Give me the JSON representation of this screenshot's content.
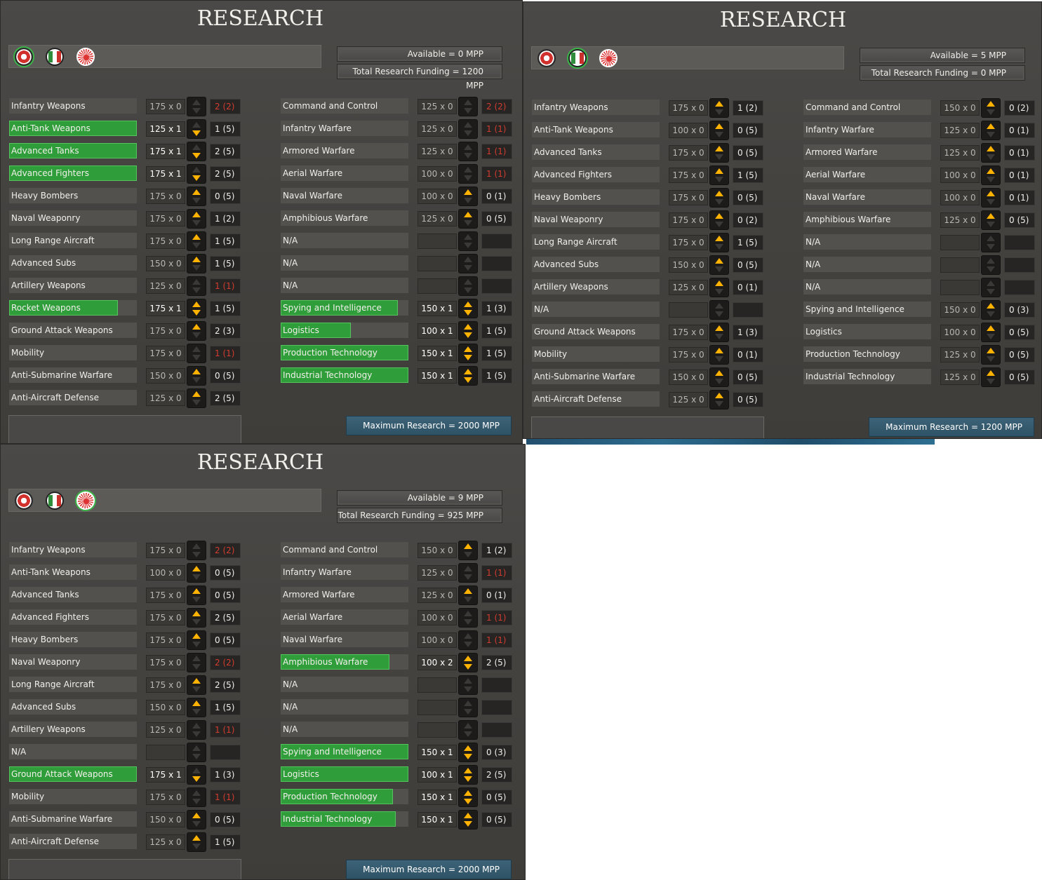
{
  "panels": [
    {
      "title": "RESEARCH",
      "selected_flag": 0,
      "available": "Available = 0 MPP",
      "total_funding": "Total Research Funding = 1200 MPP",
      "maximum": "Maximum Research = 2000 MPP",
      "left_rows": [
        {
          "name": "Infantry Weapons",
          "cost": "175 x 0",
          "level": "2 (2)",
          "red": true,
          "progress": 0,
          "up": false,
          "down": false
        },
        {
          "name": "Anti-Tank Weapons",
          "cost": "125 x 1",
          "level": "1 (5)",
          "red": false,
          "progress": 1.0,
          "up": false,
          "down": true
        },
        {
          "name": "Advanced Tanks",
          "cost": "175 x 1",
          "level": "2 (5)",
          "red": false,
          "progress": 1.0,
          "up": false,
          "down": true
        },
        {
          "name": "Advanced Fighters",
          "cost": "175 x 1",
          "level": "2 (5)",
          "red": false,
          "progress": 1.0,
          "up": false,
          "down": true
        },
        {
          "name": "Heavy Bombers",
          "cost": "175 x 0",
          "level": "0 (5)",
          "red": false,
          "progress": 0,
          "up": true,
          "down": false
        },
        {
          "name": "Naval Weaponry",
          "cost": "175 x 0",
          "level": "1 (2)",
          "red": false,
          "progress": 0,
          "up": true,
          "down": false
        },
        {
          "name": "Long Range Aircraft",
          "cost": "175 x 0",
          "level": "1 (5)",
          "red": false,
          "progress": 0,
          "up": true,
          "down": false
        },
        {
          "name": "Advanced Subs",
          "cost": "150 x 0",
          "level": "1 (5)",
          "red": false,
          "progress": 0,
          "up": true,
          "down": false
        },
        {
          "name": "Artillery Weapons",
          "cost": "125 x 0",
          "level": "1 (1)",
          "red": true,
          "progress": 0,
          "up": false,
          "down": false
        },
        {
          "name": "Rocket Weapons",
          "cost": "175 x 1",
          "level": "1 (5)",
          "red": false,
          "progress": 0.85,
          "up": true,
          "down": true
        },
        {
          "name": "Ground Attack Weapons",
          "cost": "175 x 0",
          "level": "2 (3)",
          "red": false,
          "progress": 0,
          "up": true,
          "down": false
        },
        {
          "name": "Mobility",
          "cost": "175 x 0",
          "level": "1 (1)",
          "red": true,
          "progress": 0,
          "up": false,
          "down": false
        },
        {
          "name": "Anti-Submarine Warfare",
          "cost": "150 x 0",
          "level": "0 (5)",
          "red": false,
          "progress": 0,
          "up": true,
          "down": false
        },
        {
          "name": "Anti-Aircraft Defense",
          "cost": "125 x 0",
          "level": "2 (5)",
          "red": false,
          "progress": 0,
          "up": true,
          "down": false
        }
      ],
      "right_rows": [
        {
          "name": "Command and Control",
          "cost": "125 x 0",
          "level": "2 (2)",
          "red": true,
          "progress": 0,
          "up": false,
          "down": false
        },
        {
          "name": "Infantry Warfare",
          "cost": "125 x 0",
          "level": "1 (1)",
          "red": true,
          "progress": 0,
          "up": false,
          "down": false
        },
        {
          "name": "Armored Warfare",
          "cost": "125 x 0",
          "level": "1 (1)",
          "red": true,
          "progress": 0,
          "up": false,
          "down": false
        },
        {
          "name": "Aerial Warfare",
          "cost": "100 x 0",
          "level": "1 (1)",
          "red": true,
          "progress": 0,
          "up": false,
          "down": false
        },
        {
          "name": "Naval Warfare",
          "cost": "100 x 0",
          "level": "0 (1)",
          "red": false,
          "progress": 0,
          "up": true,
          "down": false
        },
        {
          "name": "Amphibious Warfare",
          "cost": "125 x 0",
          "level": "0 (5)",
          "red": false,
          "progress": 0,
          "up": true,
          "down": false
        },
        {
          "name": "N/A",
          "cost": "",
          "level": "",
          "red": false,
          "progress": 0,
          "up": false,
          "down": false
        },
        {
          "name": "N/A",
          "cost": "",
          "level": "",
          "red": false,
          "progress": 0,
          "up": false,
          "down": false
        },
        {
          "name": "N/A",
          "cost": "",
          "level": "",
          "red": false,
          "progress": 0,
          "up": false,
          "down": false
        },
        {
          "name": "Spying and Intelligence",
          "cost": "150 x 1",
          "level": "1 (3)",
          "red": false,
          "progress": 0.92,
          "up": true,
          "down": true
        },
        {
          "name": "Logistics",
          "cost": "100 x 1",
          "level": "1 (5)",
          "red": false,
          "progress": 0.55,
          "up": true,
          "down": true
        },
        {
          "name": "Production Technology",
          "cost": "150 x 1",
          "level": "1 (5)",
          "red": false,
          "progress": 1.0,
          "up": true,
          "down": true
        },
        {
          "name": "Industrial Technology",
          "cost": "150 x 1",
          "level": "1 (5)",
          "red": false,
          "progress": 1.0,
          "up": true,
          "down": true
        }
      ]
    },
    {
      "title": "RESEARCH",
      "selected_flag": 1,
      "available": "Available = 5 MPP",
      "total_funding": "Total Research Funding = 0 MPP",
      "maximum": "Maximum Research = 1200 MPP",
      "left_rows": [
        {
          "name": "Infantry Weapons",
          "cost": "175 x 0",
          "level": "1 (2)",
          "red": false,
          "progress": 0,
          "up": true,
          "down": false
        },
        {
          "name": "Anti-Tank Weapons",
          "cost": "100 x 0",
          "level": "0 (5)",
          "red": false,
          "progress": 0,
          "up": true,
          "down": false
        },
        {
          "name": "Advanced Tanks",
          "cost": "175 x 0",
          "level": "0 (5)",
          "red": false,
          "progress": 0,
          "up": true,
          "down": false
        },
        {
          "name": "Advanced Fighters",
          "cost": "175 x 0",
          "level": "1 (5)",
          "red": false,
          "progress": 0,
          "up": true,
          "down": false
        },
        {
          "name": "Heavy Bombers",
          "cost": "175 x 0",
          "level": "0 (5)",
          "red": false,
          "progress": 0,
          "up": true,
          "down": false
        },
        {
          "name": "Naval Weaponry",
          "cost": "175 x 0",
          "level": "0 (2)",
          "red": false,
          "progress": 0,
          "up": true,
          "down": false
        },
        {
          "name": "Long Range Aircraft",
          "cost": "175 x 0",
          "level": "1 (5)",
          "red": false,
          "progress": 0,
          "up": true,
          "down": false
        },
        {
          "name": "Advanced Subs",
          "cost": "150 x 0",
          "level": "0 (5)",
          "red": false,
          "progress": 0,
          "up": true,
          "down": false
        },
        {
          "name": "Artillery Weapons",
          "cost": "125 x 0",
          "level": "0 (1)",
          "red": false,
          "progress": 0,
          "up": true,
          "down": false
        },
        {
          "name": "N/A",
          "cost": "",
          "level": "",
          "red": false,
          "progress": 0,
          "up": false,
          "down": false
        },
        {
          "name": "Ground Attack Weapons",
          "cost": "175 x 0",
          "level": "1 (3)",
          "red": false,
          "progress": 0,
          "up": true,
          "down": false
        },
        {
          "name": "Mobility",
          "cost": "175 x 0",
          "level": "0 (1)",
          "red": false,
          "progress": 0,
          "up": true,
          "down": false
        },
        {
          "name": "Anti-Submarine Warfare",
          "cost": "150 x 0",
          "level": "0 (5)",
          "red": false,
          "progress": 0,
          "up": true,
          "down": false
        },
        {
          "name": "Anti-Aircraft Defense",
          "cost": "125 x 0",
          "level": "0 (5)",
          "red": false,
          "progress": 0,
          "up": true,
          "down": false
        }
      ],
      "right_rows": [
        {
          "name": "Command and Control",
          "cost": "150 x 0",
          "level": "0 (2)",
          "red": false,
          "progress": 0,
          "up": true,
          "down": false
        },
        {
          "name": "Infantry Warfare",
          "cost": "125 x 0",
          "level": "0 (1)",
          "red": false,
          "progress": 0,
          "up": true,
          "down": false
        },
        {
          "name": "Armored Warfare",
          "cost": "125 x 0",
          "level": "0 (1)",
          "red": false,
          "progress": 0,
          "up": true,
          "down": false
        },
        {
          "name": "Aerial Warfare",
          "cost": "100 x 0",
          "level": "0 (1)",
          "red": false,
          "progress": 0,
          "up": true,
          "down": false
        },
        {
          "name": "Naval Warfare",
          "cost": "100 x 0",
          "level": "0 (1)",
          "red": false,
          "progress": 0,
          "up": true,
          "down": false
        },
        {
          "name": "Amphibious Warfare",
          "cost": "125 x 0",
          "level": "0 (5)",
          "red": false,
          "progress": 0,
          "up": true,
          "down": false
        },
        {
          "name": "N/A",
          "cost": "",
          "level": "",
          "red": false,
          "progress": 0,
          "up": false,
          "down": false
        },
        {
          "name": "N/A",
          "cost": "",
          "level": "",
          "red": false,
          "progress": 0,
          "up": false,
          "down": false
        },
        {
          "name": "N/A",
          "cost": "",
          "level": "",
          "red": false,
          "progress": 0,
          "up": false,
          "down": false
        },
        {
          "name": "Spying and Intelligence",
          "cost": "150 x 0",
          "level": "0 (3)",
          "red": false,
          "progress": 0,
          "up": true,
          "down": false
        },
        {
          "name": "Logistics",
          "cost": "100 x 0",
          "level": "0 (5)",
          "red": false,
          "progress": 0,
          "up": true,
          "down": false
        },
        {
          "name": "Production Technology",
          "cost": "125 x 0",
          "level": "0 (5)",
          "red": false,
          "progress": 0,
          "up": true,
          "down": false
        },
        {
          "name": "Industrial Technology",
          "cost": "125 x 0",
          "level": "0 (5)",
          "red": false,
          "progress": 0,
          "up": true,
          "down": false
        }
      ]
    },
    {
      "title": "RESEARCH",
      "selected_flag": 2,
      "available": "Available = 9 MPP",
      "total_funding": "Total Research Funding = 925 MPP",
      "maximum": "Maximum Research = 2000 MPP",
      "left_rows": [
        {
          "name": "Infantry Weapons",
          "cost": "175 x 0",
          "level": "2 (2)",
          "red": true,
          "progress": 0,
          "up": false,
          "down": false
        },
        {
          "name": "Anti-Tank Weapons",
          "cost": "100 x 0",
          "level": "0 (5)",
          "red": false,
          "progress": 0,
          "up": true,
          "down": false
        },
        {
          "name": "Advanced Tanks",
          "cost": "175 x 0",
          "level": "0 (5)",
          "red": false,
          "progress": 0,
          "up": true,
          "down": false
        },
        {
          "name": "Advanced Fighters",
          "cost": "175 x 0",
          "level": "2 (5)",
          "red": false,
          "progress": 0,
          "up": true,
          "down": false
        },
        {
          "name": "Heavy Bombers",
          "cost": "175 x 0",
          "level": "0 (5)",
          "red": false,
          "progress": 0,
          "up": true,
          "down": false
        },
        {
          "name": "Naval Weaponry",
          "cost": "175 x 0",
          "level": "2 (2)",
          "red": true,
          "progress": 0,
          "up": false,
          "down": false
        },
        {
          "name": "Long Range Aircraft",
          "cost": "175 x 0",
          "level": "2 (5)",
          "red": false,
          "progress": 0,
          "up": true,
          "down": false
        },
        {
          "name": "Advanced Subs",
          "cost": "150 x 0",
          "level": "1 (5)",
          "red": false,
          "progress": 0,
          "up": true,
          "down": false
        },
        {
          "name": "Artillery Weapons",
          "cost": "125 x 0",
          "level": "1 (1)",
          "red": true,
          "progress": 0,
          "up": false,
          "down": false
        },
        {
          "name": "N/A",
          "cost": "",
          "level": "",
          "red": false,
          "progress": 0,
          "up": false,
          "down": false
        },
        {
          "name": "Ground Attack Weapons",
          "cost": "175 x 1",
          "level": "1 (3)",
          "red": false,
          "progress": 1.0,
          "up": false,
          "down": true
        },
        {
          "name": "Mobility",
          "cost": "175 x 0",
          "level": "1 (1)",
          "red": true,
          "progress": 0,
          "up": false,
          "down": false
        },
        {
          "name": "Anti-Submarine Warfare",
          "cost": "150 x 0",
          "level": "0 (5)",
          "red": false,
          "progress": 0,
          "up": true,
          "down": false
        },
        {
          "name": "Anti-Aircraft Defense",
          "cost": "125 x 0",
          "level": "1 (5)",
          "red": false,
          "progress": 0,
          "up": true,
          "down": false
        }
      ],
      "right_rows": [
        {
          "name": "Command and Control",
          "cost": "150 x 0",
          "level": "1 (2)",
          "red": false,
          "progress": 0,
          "up": true,
          "down": false
        },
        {
          "name": "Infantry Warfare",
          "cost": "125 x 0",
          "level": "1 (1)",
          "red": true,
          "progress": 0,
          "up": false,
          "down": false
        },
        {
          "name": "Armored Warfare",
          "cost": "125 x 0",
          "level": "0 (1)",
          "red": false,
          "progress": 0,
          "up": true,
          "down": false
        },
        {
          "name": "Aerial Warfare",
          "cost": "100 x 0",
          "level": "1 (1)",
          "red": true,
          "progress": 0,
          "up": false,
          "down": false
        },
        {
          "name": "Naval Warfare",
          "cost": "100 x 0",
          "level": "1 (1)",
          "red": true,
          "progress": 0,
          "up": false,
          "down": false
        },
        {
          "name": "Amphibious Warfare",
          "cost": "100 x 2",
          "level": "2 (5)",
          "red": false,
          "progress": 0.85,
          "up": true,
          "down": true
        },
        {
          "name": "N/A",
          "cost": "",
          "level": "",
          "red": false,
          "progress": 0,
          "up": false,
          "down": false
        },
        {
          "name": "N/A",
          "cost": "",
          "level": "",
          "red": false,
          "progress": 0,
          "up": false,
          "down": false
        },
        {
          "name": "N/A",
          "cost": "",
          "level": "",
          "red": false,
          "progress": 0,
          "up": false,
          "down": false
        },
        {
          "name": "Spying and Intelligence",
          "cost": "150 x 1",
          "level": "0 (3)",
          "red": false,
          "progress": 1.0,
          "up": true,
          "down": true
        },
        {
          "name": "Logistics",
          "cost": "100 x 1",
          "level": "2 (5)",
          "red": false,
          "progress": 1.0,
          "up": true,
          "down": true
        },
        {
          "name": "Production Technology",
          "cost": "150 x 1",
          "level": "0 (5)",
          "red": false,
          "progress": 0.88,
          "up": true,
          "down": true
        },
        {
          "name": "Industrial Technology",
          "cost": "150 x 1",
          "level": "0 (5)",
          "red": false,
          "progress": 0.9,
          "up": true,
          "down": true
        }
      ]
    }
  ],
  "flags": [
    "german-flag-icon",
    "italian-flag-icon",
    "japanese-flag-icon"
  ],
  "colors": {
    "progress_fill": "#2f9e3a",
    "maxed_level": "#d33c2f",
    "arrow": "#ffb300",
    "max_research_box": "#3d6378"
  }
}
